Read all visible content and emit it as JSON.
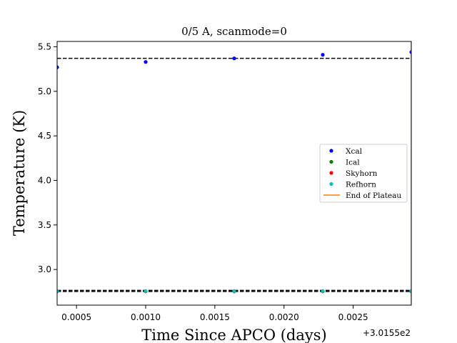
{
  "chart_data": {
    "type": "scatter",
    "title": "0/5 A, scanmode=0",
    "xlabel": "Time Since APCO (days)",
    "ylabel": "Temperature (K)",
    "x_offset_label": "+3.0155e2",
    "xlim": [
      0.00036,
      0.00292
    ],
    "ylim": [
      2.6,
      5.56
    ],
    "xticks": [
      0.0005,
      0.001,
      0.0015,
      0.002,
      0.0025
    ],
    "xtick_labels": [
      "0.0005",
      "0.0010",
      "0.0015",
      "0.0020",
      "0.0025"
    ],
    "yticks": [
      3.0,
      3.5,
      4.0,
      4.5,
      5.0,
      5.5
    ],
    "ytick_labels": [
      "3.0",
      "3.5",
      "4.0",
      "4.5",
      "5.0",
      "5.5"
    ],
    "grid": false,
    "legend_position": "center-right",
    "series": [
      {
        "name": "Xcal",
        "color": "#0000ff",
        "marker": "dot",
        "points": [
          [
            0.00036,
            5.27
          ],
          [
            0.001,
            5.33
          ],
          [
            0.00164,
            5.37
          ],
          [
            0.00228,
            5.41
          ],
          [
            0.00292,
            5.44
          ]
        ]
      },
      {
        "name": "Ical",
        "color": "#008000",
        "marker": "dot",
        "points": [
          [
            0.00036,
            2.755
          ],
          [
            0.001,
            2.755
          ],
          [
            0.00164,
            2.755
          ],
          [
            0.00228,
            2.755
          ],
          [
            0.00292,
            2.755
          ]
        ]
      },
      {
        "name": "Skyhorn",
        "color": "#ff0000",
        "marker": "dot",
        "points": [
          [
            0.00036,
            2.755
          ],
          [
            0.001,
            2.755
          ],
          [
            0.00164,
            2.755
          ],
          [
            0.00228,
            2.755
          ],
          [
            0.00292,
            2.755
          ]
        ]
      },
      {
        "name": "Refhorn",
        "color": "#00bfbf",
        "marker": "dot",
        "points": [
          [
            0.00036,
            2.758
          ],
          [
            0.001,
            2.758
          ],
          [
            0.00164,
            2.758
          ],
          [
            0.00228,
            2.758
          ],
          [
            0.00292,
            2.758
          ]
        ]
      },
      {
        "name": "End of Plateau",
        "color": "#ff7f0e",
        "marker": "vline",
        "x": 0.00292
      }
    ],
    "reference_lines": [
      {
        "y": 5.37,
        "color": "#000000",
        "style": "dashed"
      },
      {
        "y": 2.765,
        "color": "#000000",
        "style": "dashed"
      },
      {
        "y": 2.753,
        "color": "#000000",
        "style": "dashed"
      }
    ]
  }
}
